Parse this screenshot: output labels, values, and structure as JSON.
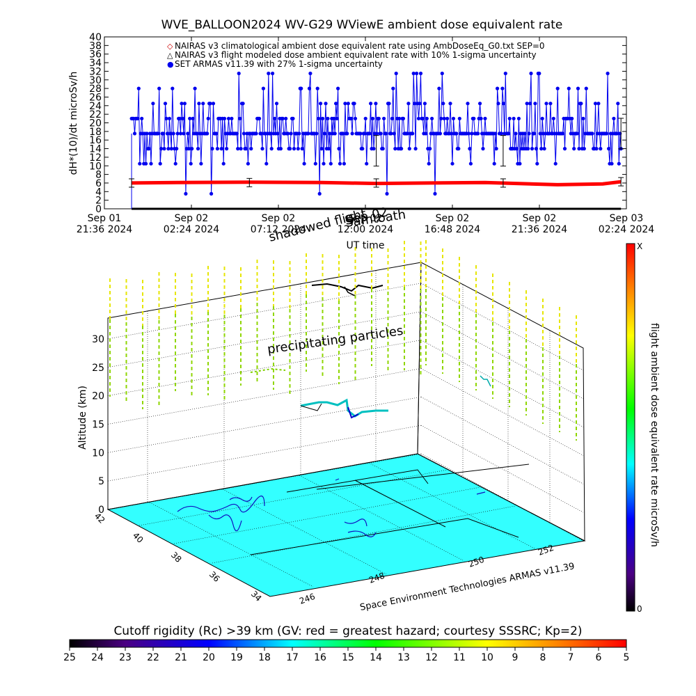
{
  "chart_data": [
    {
      "type": "scatter",
      "title": "WVE_BALLOON2024 WV-G29 WViewE ambient dose equivalent rate",
      "ylabel": "dH*(10)/dt microSv/h",
      "xlabel": "UT time",
      "ylim": [
        0,
        40
      ],
      "y_ticks": [
        "0",
        "2",
        "4",
        "6",
        "8",
        "10",
        "12",
        "14",
        "16",
        "18",
        "20",
        "22",
        "24",
        "26",
        "28",
        "30",
        "32",
        "34",
        "36",
        "38",
        "40"
      ],
      "x_ticks": [
        {
          "line1": "Sep 01",
          "line2": "21:36 2024"
        },
        {
          "line1": "Sep 02",
          "line2": "02:24 2024"
        },
        {
          "line1": "Sep 02",
          "line2": "07:12 2024"
        },
        {
          "line1": "Sep 02",
          "line2": "12:00 2024"
        },
        {
          "line1": "Sep 02",
          "line2": "16:48 2024"
        },
        {
          "line1": "Sep 02",
          "line2": "21:36 2024"
        },
        {
          "line1": "Sep 03",
          "line2": "02:24 2024"
        }
      ],
      "legend": [
        {
          "symbol": "◇",
          "color": "#cc0000",
          "text": "NAIRAS v3 climatological ambient dose equivalent rate using AmbDoseEq_G0.txt SEP=0"
        },
        {
          "symbol": "△",
          "color": "#000000",
          "text": "NAIRAS v3 flight modeled dose ambient equivalent rate with 10% 1-sigma uncertainty"
        },
        {
          "symbol": "●",
          "color": "#0000ee",
          "text": "SET ARMAS v11.39 with 27% 1-sigma uncertainty"
        }
      ],
      "series": [
        {
          "name": "NAIRAS v3 climatological ambient dose equivalent rate using AmbDoseEq_G0.txt SEP=0",
          "color": "#ff0000",
          "values_approx": [
            6.0,
            6.1,
            6.2,
            6.1,
            5.9,
            6.0,
            6.1,
            5.6,
            5.8,
            6.3
          ],
          "x_hours_after_first_tick": [
            1.5,
            4,
            8,
            12,
            15,
            18,
            21,
            25,
            27.5,
            28.5
          ]
        },
        {
          "name": "NAIRAS v3 flight modeled dose ambient equivalent rate with 10% 1-sigma uncertainty",
          "color": "#000000",
          "values_approx": [
            0,
            0,
            0,
            0,
            0
          ],
          "x_hours_after_first_tick": [
            1.5,
            8,
            15,
            22,
            28.5
          ]
        },
        {
          "name": "SET ARMAS v11.39 with 27% 1-sigma uncertainty",
          "color": "#0000ee",
          "typical": 17.5,
          "range": [
            3.5,
            31.5
          ]
        }
      ],
      "overlay_text": [
        "Sep 02",
        "shadowed flight",
        "Samtoath"
      ]
    },
    {
      "type": "3d",
      "zlabel": "Altitude (km)",
      "z_ticks": [
        "0",
        "5",
        "10",
        "15",
        "20",
        "25",
        "30"
      ],
      "lat_ticks": [
        "34",
        "36",
        "38",
        "40",
        "42"
      ],
      "lon_ticks": [
        "246",
        "248",
        "250",
        "252"
      ],
      "annotations": [
        "precipitating particles",
        "Space Environment Technologies ARMAS v11.39"
      ],
      "colorbar_label": "flight ambient dose equivalent rate microSv/h",
      "colorbar_top": "X",
      "colorbar_bottom": "0"
    },
    {
      "type": "colorbar",
      "title": "Cutoff rigidity (Rc) >39 km (GV: red = greatest hazard; courtesy SSSRC; Kp=2)",
      "ticks": [
        "25",
        "24",
        "23",
        "22",
        "21",
        "20",
        "19",
        "18",
        "17",
        "16",
        "15",
        "14",
        "13",
        "12",
        "11",
        "10",
        "9",
        "8",
        "7",
        "6",
        "5"
      ]
    }
  ]
}
